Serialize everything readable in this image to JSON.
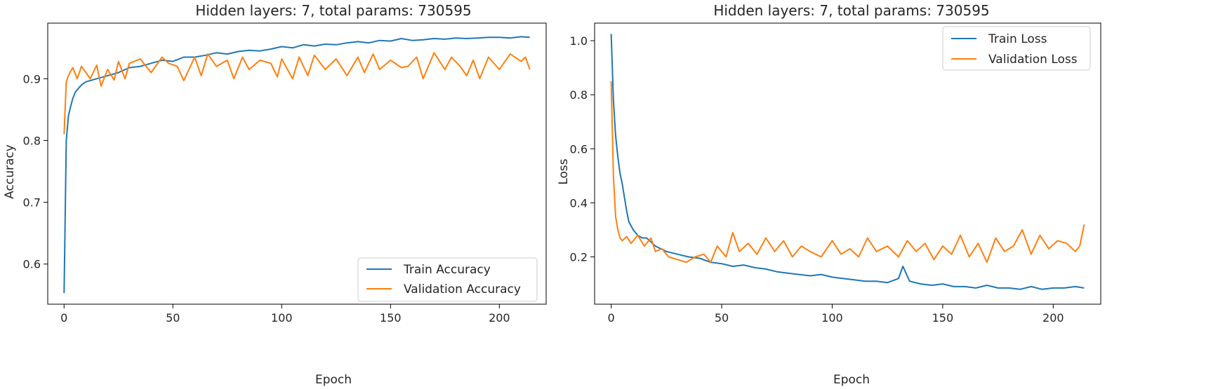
{
  "colors": {
    "train": "#1f77b4",
    "validation": "#ff7f0e",
    "axis": "#000000",
    "text": "#262626"
  },
  "chart_data": [
    {
      "type": "line",
      "title": "Hidden layers: 7, total params: 730595",
      "xlabel": "Epoch",
      "ylabel": "Accuracy",
      "xlim": [
        -7.5,
        221.5
      ],
      "ylim": [
        0.535,
        0.99
      ],
      "xticks": [
        0,
        50,
        100,
        150,
        200
      ],
      "yticks": [
        0.6,
        0.7,
        0.8,
        0.9
      ],
      "xtick_labels": [
        "0",
        "50",
        "100",
        "150",
        "200"
      ],
      "ytick_labels": [
        "0.6",
        "0.7",
        "0.8",
        "0.9"
      ],
      "grid": false,
      "legend_position": "lower-right",
      "series": [
        {
          "name": "Train Accuracy",
          "x": [
            0,
            1,
            2,
            3,
            4,
            5,
            6,
            8,
            10,
            12,
            15,
            20,
            25,
            30,
            35,
            40,
            45,
            50,
            55,
            60,
            65,
            70,
            75,
            80,
            85,
            90,
            95,
            100,
            105,
            110,
            115,
            120,
            125,
            130,
            135,
            140,
            145,
            150,
            155,
            160,
            165,
            170,
            175,
            180,
            185,
            190,
            195,
            200,
            205,
            210,
            214
          ],
          "y": [
            0.553,
            0.8,
            0.84,
            0.855,
            0.868,
            0.877,
            0.882,
            0.89,
            0.895,
            0.897,
            0.9,
            0.905,
            0.91,
            0.918,
            0.92,
            0.925,
            0.93,
            0.928,
            0.935,
            0.935,
            0.938,
            0.942,
            0.94,
            0.944,
            0.946,
            0.945,
            0.948,
            0.952,
            0.95,
            0.955,
            0.953,
            0.956,
            0.955,
            0.958,
            0.96,
            0.958,
            0.962,
            0.961,
            0.965,
            0.962,
            0.963,
            0.965,
            0.964,
            0.966,
            0.965,
            0.966,
            0.967,
            0.967,
            0.966,
            0.968,
            0.967
          ]
        },
        {
          "name": "Validation Accuracy",
          "x": [
            0,
            1,
            2,
            3,
            4,
            6,
            8,
            10,
            12,
            15,
            17,
            20,
            23,
            25,
            28,
            30,
            35,
            40,
            45,
            48,
            52,
            55,
            60,
            63,
            66,
            70,
            75,
            78,
            82,
            85,
            90,
            95,
            98,
            100,
            105,
            108,
            112,
            115,
            120,
            125,
            130,
            135,
            138,
            142,
            145,
            150,
            155,
            158,
            162,
            165,
            170,
            175,
            178,
            182,
            185,
            188,
            191,
            195,
            200,
            205,
            210,
            212,
            214
          ],
          "y": [
            0.81,
            0.895,
            0.905,
            0.912,
            0.918,
            0.9,
            0.92,
            0.91,
            0.9,
            0.922,
            0.888,
            0.915,
            0.898,
            0.928,
            0.9,
            0.925,
            0.932,
            0.91,
            0.935,
            0.925,
            0.92,
            0.897,
            0.935,
            0.905,
            0.94,
            0.92,
            0.93,
            0.9,
            0.935,
            0.915,
            0.93,
            0.925,
            0.903,
            0.932,
            0.9,
            0.935,
            0.905,
            0.938,
            0.915,
            0.932,
            0.905,
            0.935,
            0.91,
            0.94,
            0.915,
            0.93,
            0.918,
            0.92,
            0.935,
            0.9,
            0.942,
            0.915,
            0.935,
            0.92,
            0.905,
            0.93,
            0.9,
            0.935,
            0.915,
            0.94,
            0.928,
            0.935,
            0.915
          ]
        }
      ]
    },
    {
      "type": "line",
      "title": "Hidden layers: 7, total params: 730595",
      "xlabel": "Epoch",
      "ylabel": "Loss",
      "xlim": [
        -7.5,
        221.5
      ],
      "ylim": [
        0.025,
        1.065
      ],
      "xticks": [
        0,
        50,
        100,
        150,
        200
      ],
      "yticks": [
        0.2,
        0.4,
        0.6,
        0.8,
        1.0
      ],
      "xtick_labels": [
        "0",
        "50",
        "100",
        "150",
        "200"
      ],
      "ytick_labels": [
        "0.2",
        "0.4",
        "0.6",
        "0.8",
        "1.0"
      ],
      "grid": false,
      "legend_position": "upper-right",
      "series": [
        {
          "name": "Train Loss",
          "x": [
            0,
            1,
            2,
            3,
            4,
            5,
            6,
            7,
            8,
            10,
            12,
            14,
            16,
            18,
            20,
            25,
            30,
            35,
            40,
            45,
            50,
            55,
            60,
            65,
            70,
            75,
            80,
            85,
            90,
            95,
            100,
            105,
            110,
            115,
            120,
            125,
            130,
            132,
            135,
            140,
            145,
            150,
            155,
            160,
            165,
            170,
            175,
            180,
            185,
            190,
            195,
            200,
            205,
            210,
            214
          ],
          "y": [
            1.025,
            0.78,
            0.65,
            0.57,
            0.51,
            0.47,
            0.42,
            0.37,
            0.33,
            0.3,
            0.28,
            0.27,
            0.27,
            0.255,
            0.24,
            0.22,
            0.21,
            0.2,
            0.195,
            0.18,
            0.175,
            0.165,
            0.17,
            0.16,
            0.155,
            0.145,
            0.14,
            0.135,
            0.13,
            0.135,
            0.125,
            0.12,
            0.115,
            0.11,
            0.11,
            0.105,
            0.12,
            0.165,
            0.11,
            0.1,
            0.095,
            0.1,
            0.09,
            0.09,
            0.085,
            0.095,
            0.085,
            0.085,
            0.08,
            0.09,
            0.08,
            0.085,
            0.085,
            0.09,
            0.085
          ]
        },
        {
          "name": "Validation Loss",
          "x": [
            0,
            1,
            2,
            3,
            4,
            5,
            7,
            9,
            12,
            15,
            18,
            20,
            23,
            26,
            30,
            34,
            38,
            42,
            45,
            48,
            52,
            55,
            58,
            62,
            66,
            70,
            74,
            78,
            82,
            86,
            90,
            95,
            100,
            104,
            108,
            112,
            116,
            120,
            125,
            130,
            134,
            138,
            142,
            146,
            150,
            154,
            158,
            162,
            166,
            170,
            174,
            178,
            182,
            186,
            190,
            194,
            198,
            202,
            206,
            210,
            212,
            214
          ],
          "y": [
            0.85,
            0.5,
            0.35,
            0.3,
            0.27,
            0.26,
            0.275,
            0.25,
            0.28,
            0.24,
            0.27,
            0.22,
            0.23,
            0.2,
            0.19,
            0.18,
            0.2,
            0.21,
            0.18,
            0.24,
            0.2,
            0.29,
            0.22,
            0.25,
            0.21,
            0.27,
            0.22,
            0.26,
            0.2,
            0.24,
            0.22,
            0.2,
            0.26,
            0.21,
            0.23,
            0.2,
            0.27,
            0.22,
            0.24,
            0.2,
            0.26,
            0.22,
            0.25,
            0.19,
            0.24,
            0.21,
            0.28,
            0.2,
            0.25,
            0.18,
            0.27,
            0.22,
            0.24,
            0.3,
            0.21,
            0.28,
            0.23,
            0.26,
            0.25,
            0.22,
            0.24,
            0.32
          ]
        }
      ]
    }
  ]
}
